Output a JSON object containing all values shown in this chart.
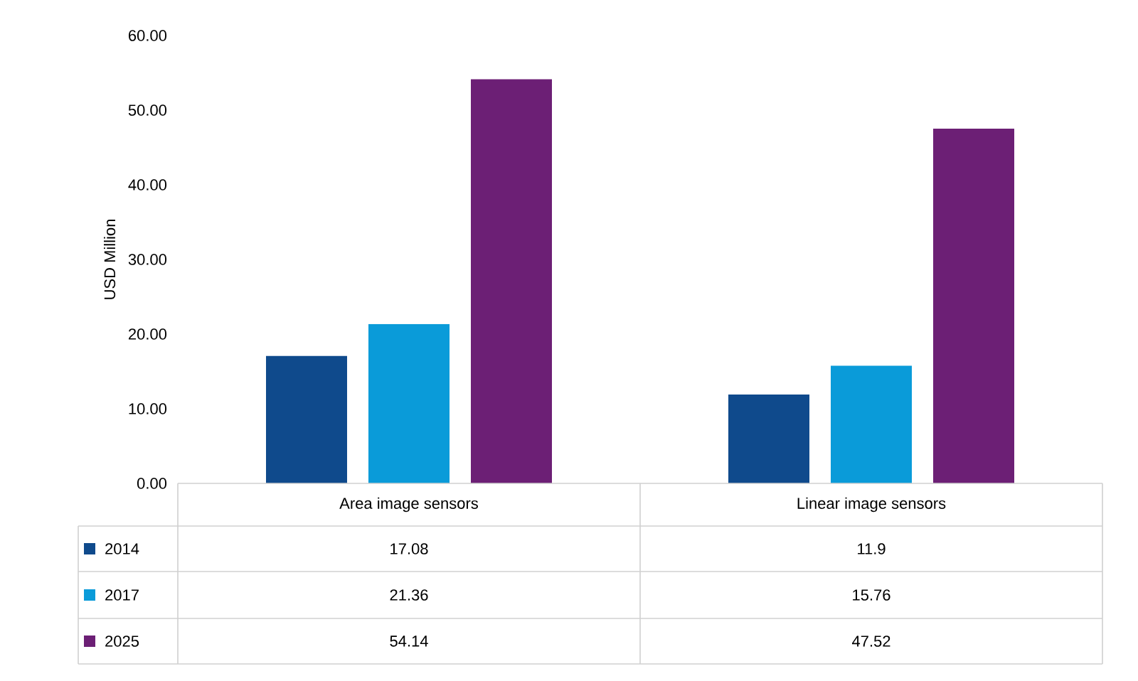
{
  "chart_data": {
    "type": "bar",
    "ylabel": "USD Million",
    "categories": [
      "Area image sensors",
      "Linear image sensors"
    ],
    "series": [
      {
        "name": "2014",
        "color": "#0f4a8c",
        "values": [
          17.08,
          11.9
        ]
      },
      {
        "name": "2017",
        "color": "#0a9bd9",
        "values": [
          21.36,
          15.76
        ]
      },
      {
        "name": "2025",
        "color": "#6c1f75",
        "values": [
          54.14,
          47.52
        ]
      }
    ],
    "ylim": [
      0,
      60
    ],
    "yticks": [
      {
        "value": 0,
        "label": "0.00"
      },
      {
        "value": 10,
        "label": "10.00"
      },
      {
        "value": 20,
        "label": "20.00"
      },
      {
        "value": 30,
        "label": "30.00"
      },
      {
        "value": 40,
        "label": "40.00"
      },
      {
        "value": 50,
        "label": "50.00"
      },
      {
        "value": 60,
        "label": "60.00"
      }
    ],
    "grid": false,
    "legend": "bottom",
    "data_labels": true
  }
}
